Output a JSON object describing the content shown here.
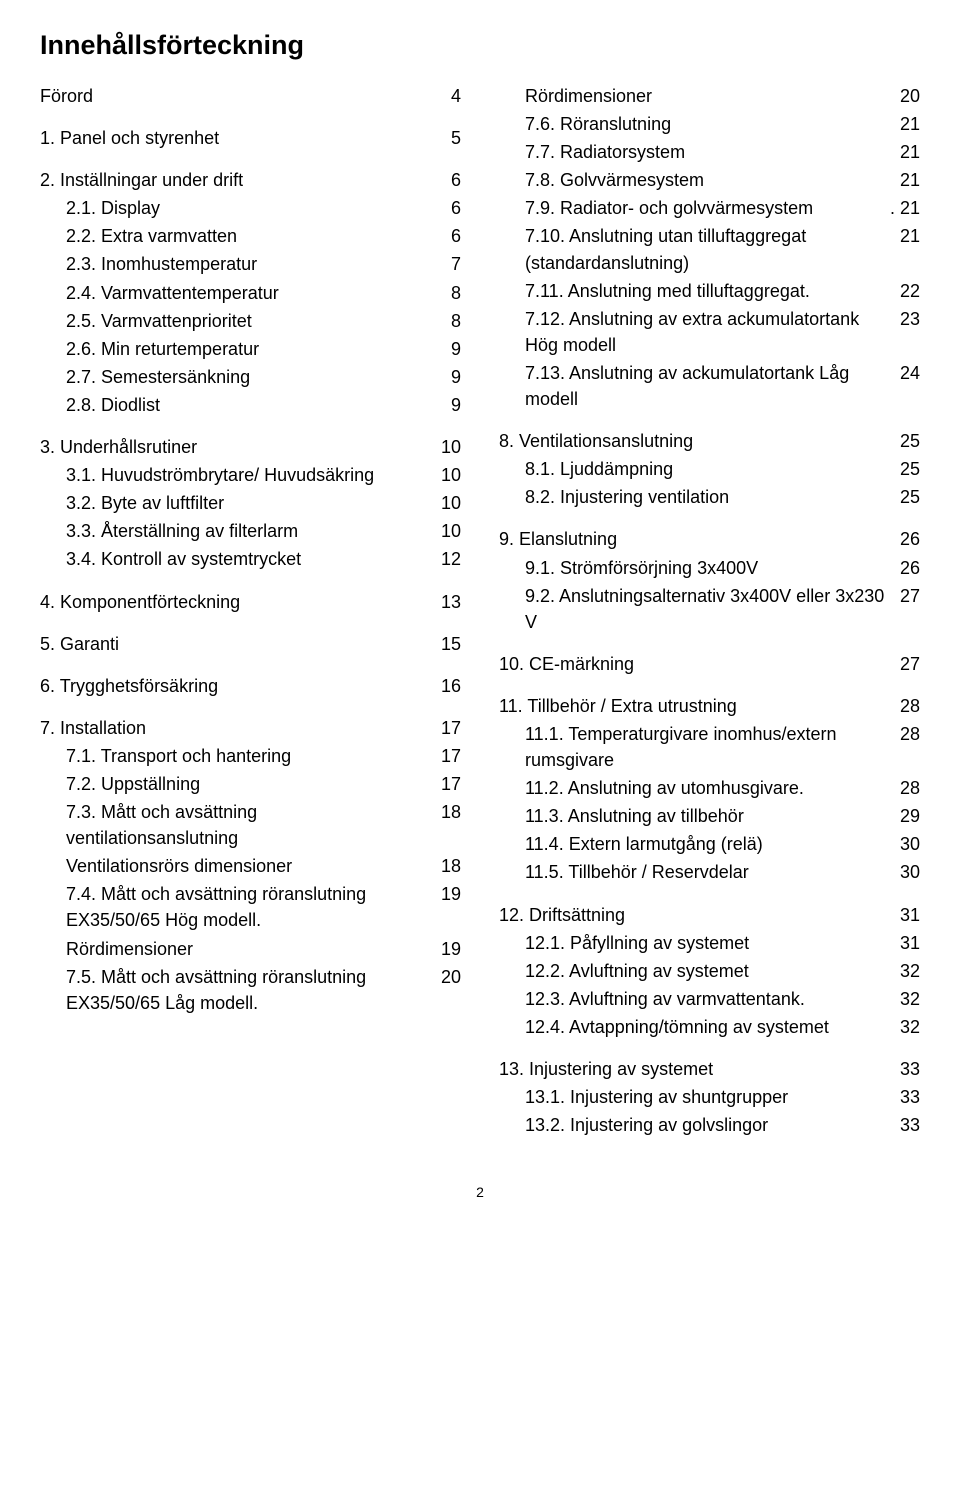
{
  "title": "Innehållsförteckning",
  "page_number": "2",
  "font": {
    "body_size_pt": 14,
    "title_size_pt": 21
  },
  "colors": {
    "text": "#000000",
    "background": "#ffffff"
  },
  "left": [
    {
      "group": [
        {
          "label": "Förord",
          "page": "4"
        }
      ]
    },
    {
      "group": [
        {
          "label": "1.  Panel och styrenhet",
          "page": "5"
        }
      ]
    },
    {
      "group": [
        {
          "label": "2.  Inställningar under drift",
          "page": "6"
        },
        {
          "label": "2.1.  Display",
          "page": "6",
          "sub": true
        },
        {
          "label": "2.2.  Extra varmvatten",
          "page": "6",
          "sub": true
        },
        {
          "label": "2.3.  Inomhustemperatur",
          "page": "7",
          "sub": true
        },
        {
          "label": "2.4.  Varmvattentemperatur",
          "page": "8",
          "sub": true
        },
        {
          "label": "2.5.  Varmvattenprioritet",
          "page": "8",
          "sub": true
        },
        {
          "label": "2.6.  Min returtemperatur",
          "page": "9",
          "sub": true
        },
        {
          "label": "2.7.  Semestersänkning",
          "page": "9",
          "sub": true
        },
        {
          "label": "2.8.  Diodlist",
          "page": "9",
          "sub": true
        }
      ]
    },
    {
      "group": [
        {
          "label": "3.  Underhållsrutiner",
          "page": "10"
        },
        {
          "label": "3.1.   Huvudströmbrytare/ Huvudsäkring",
          "page": "10",
          "sub": true
        },
        {
          "label": "3.2.  Byte av luftfilter",
          "page": "10",
          "sub": true
        },
        {
          "label": "3.3.  Återställning av filterlarm",
          "page": "10",
          "sub": true
        },
        {
          "label": "3.4.  Kontroll av systemtrycket",
          "page": "12",
          "sub": true
        }
      ]
    },
    {
      "group": [
        {
          "label": "4.  Komponentförteckning",
          "page": "13"
        }
      ]
    },
    {
      "group": [
        {
          "label": "5.  Garanti",
          "page": "15"
        }
      ]
    },
    {
      "group": [
        {
          "label": "6.  Trygghetsförsäkring",
          "page": "16"
        }
      ]
    },
    {
      "group": [
        {
          "label": "7.  Installation",
          "page": "17"
        },
        {
          "label": "7.1.  Transport och hantering",
          "page": "17",
          "sub": true
        },
        {
          "label": "7.2.  Uppställning",
          "page": "17",
          "sub": true
        },
        {
          "label": "7.3.  Mått och avsättning ventilationsanslutning",
          "page": "18",
          "sub": true
        },
        {
          "label": "Ventilationsrörs dimensioner",
          "page": "18",
          "sub": true
        },
        {
          "label": "7.4.  Mått och avsättning röranslutning EX35/50/65 Hög modell.",
          "page": "19",
          "sub": true
        },
        {
          "label": "Rördimensioner",
          "page": "19",
          "sub": true
        },
        {
          "label": "7.5.  Mått och avsättning röranslutning EX35/50/65 Låg modell.",
          "page": "20",
          "sub": true
        }
      ]
    }
  ],
  "right": [
    {
      "group": [
        {
          "label": "Rördimensioner",
          "page": "20",
          "sub": true
        },
        {
          "label": "7.6.  Röranslutning",
          "page": "21",
          "sub": true
        },
        {
          "label": "7.7.  Radiatorsystem",
          "page": "21",
          "sub": true
        },
        {
          "label": "7.8.  Golvvärmesystem",
          "page": "21",
          "sub": true
        },
        {
          "label": "7.9.  Radiator- och golvvärmesystem",
          "page": ". 21",
          "sub": true
        },
        {
          "label": "7.10. Anslutning utan tilluftaggregat (standardanslutning)",
          "page": "21",
          "sub": true
        },
        {
          "label": "7.11. Anslutning med tilluftaggregat.",
          "page": "22",
          "sub": true
        },
        {
          "label": "7.12. Anslutning av extra ackumulatortank Hög modell",
          "page": "23",
          "sub": true
        },
        {
          "label": "7.13. Anslutning av ackumulatortank Låg modell",
          "page": "24",
          "sub": true
        }
      ]
    },
    {
      "group": [
        {
          "label": "8.  Ventilationsanslutning",
          "page": "25"
        },
        {
          "label": "8.1.  Ljuddämpning",
          "page": "25",
          "sub": true
        },
        {
          "label": "8.2.  Injustering ventilation",
          "page": "25",
          "sub": true
        }
      ]
    },
    {
      "group": [
        {
          "label": "9.  Elanslutning",
          "page": "26"
        },
        {
          "label": "9.1.  Strömförsörjning 3x400V",
          "page": "26",
          "sub": true
        },
        {
          "label": "9.2.  Anslutningsalternativ 3x400V eller 3x230 V",
          "page": "27",
          "sub": true
        }
      ]
    },
    {
      "group": [
        {
          "label": "10.  CE-märkning",
          "page": "27"
        }
      ]
    },
    {
      "group": [
        {
          "label": "11.  Tillbehör / Extra utrustning",
          "page": "28"
        },
        {
          "label": "11.1.   Temperaturgivare inomhus/extern rumsgivare",
          "page": "28",
          "sub": true
        },
        {
          "label": "11.2.   Anslutning av utomhusgivare.",
          "page": "28",
          "sub": true
        },
        {
          "label": "11.3.   Anslutning av tillbehör",
          "page": "29",
          "sub": true
        },
        {
          "label": "11.4.   Extern larmutgång (relä)",
          "page": "30",
          "sub": true
        },
        {
          "label": "11.5.   Tillbehör / Reservdelar",
          "page": "30",
          "sub": true
        }
      ]
    },
    {
      "group": [
        {
          "label": "12.   Driftsättning",
          "page": "31"
        },
        {
          "label": "12.1.   Påfyllning av systemet",
          "page": "31",
          "sub": true
        },
        {
          "label": "12.2.   Avluftning av systemet",
          "page": "32",
          "sub": true
        },
        {
          "label": "12.3.   Avluftning av varmvattentank.",
          "page": "32",
          "sub": true
        },
        {
          "label": "12.4.   Avtappning/tömning av systemet",
          "page": "32",
          "sub": true
        }
      ]
    },
    {
      "group": [
        {
          "label": "13.  Injustering av systemet",
          "page": "33"
        },
        {
          "label": "13.1.   Injustering av shuntgrupper",
          "page": "33",
          "sub": true
        },
        {
          "label": "13.2.   Injustering av golvslingor",
          "page": "33",
          "sub": true
        }
      ]
    }
  ]
}
